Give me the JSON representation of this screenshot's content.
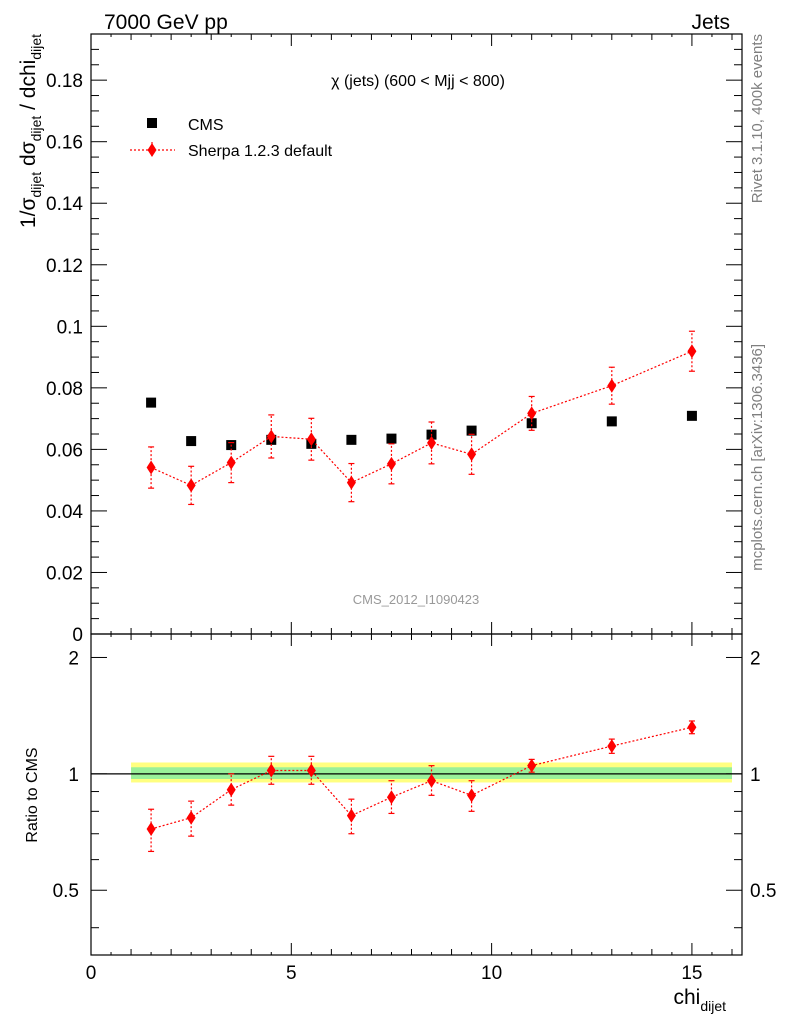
{
  "header": {
    "left": "7000 GeV pp",
    "right": "Jets"
  },
  "side_labels": {
    "rivet": "Rivet 3.1.10,  400k events",
    "source": "mcplots.cern.ch [arXiv:1306.3436]"
  },
  "chart_data": [
    {
      "type": "scatter",
      "title": "χ (jets) (600 < Mjj <  800)",
      "watermark": "CMS_2012_I1090423",
      "ylabel_parts": {
        "pre": "1/σ",
        "sub1": "dijet",
        "mid": " dσ",
        "sub2": "dijet",
        "post": " / dchi",
        "sub3": "dijet"
      },
      "xlim": [
        0,
        16.25
      ],
      "ylim": [
        0,
        0.195
      ],
      "yticks": [
        0,
        0.02,
        0.04,
        0.06,
        0.08,
        0.1,
        0.12,
        0.14,
        0.16,
        0.18
      ],
      "ytick_labels": [
        "0",
        "0.02",
        "0.04",
        "0.06",
        "0.08",
        "0.1",
        "0.12",
        "0.14",
        "0.16",
        "0.18"
      ],
      "legend_position": "top-left",
      "series": [
        {
          "name": "CMS",
          "style": "square-markers",
          "color": "#000000",
          "x": [
            1.5,
            2.5,
            3.5,
            4.5,
            5.5,
            6.5,
            7.5,
            8.5,
            9.5,
            11,
            13,
            15
          ],
          "y": [
            0.0752,
            0.0627,
            0.0614,
            0.0631,
            0.0618,
            0.0631,
            0.0635,
            0.0648,
            0.0661,
            0.0685,
            0.0691,
            0.0709
          ]
        },
        {
          "name": "Sherpa 1.2.3 default",
          "style": "diamond-dotted-line",
          "color": "#ff0000",
          "x": [
            1.5,
            2.5,
            3.5,
            4.5,
            5.5,
            6.5,
            7.5,
            8.5,
            9.5,
            11,
            13,
            15
          ],
          "y": [
            0.0541,
            0.0483,
            0.0557,
            0.0642,
            0.0633,
            0.0492,
            0.0553,
            0.0621,
            0.0584,
            0.0717,
            0.0807,
            0.0919
          ],
          "err": [
            0.0067,
            0.0062,
            0.0065,
            0.007,
            0.0068,
            0.0062,
            0.0065,
            0.0068,
            0.0065,
            0.0055,
            0.006,
            0.0065
          ]
        }
      ]
    },
    {
      "type": "scatter",
      "ylabel": "Ratio to CMS",
      "xlabel": "chi",
      "xlabel_sub": "dijet",
      "xlim": [
        0,
        16.25
      ],
      "ylim": [
        0.34,
        2.3
      ],
      "log_y": true,
      "xticks": [
        0,
        5,
        10,
        15
      ],
      "xtick_labels": [
        "0",
        "5",
        "10",
        "15"
      ],
      "yticks": [
        0.5,
        1,
        2
      ],
      "ytick_labels": [
        "0.5",
        "1",
        "2"
      ],
      "reference_band": {
        "x": [
          1,
          16
        ],
        "yellow": [
          0.95,
          1.07
        ],
        "green": [
          0.97,
          1.04
        ]
      },
      "series": [
        {
          "name": "Sherpa 1.2.3 default",
          "color": "#ff0000",
          "x": [
            1.5,
            2.5,
            3.5,
            4.5,
            5.5,
            6.5,
            7.5,
            8.5,
            9.5,
            11,
            13,
            15
          ],
          "y": [
            0.72,
            0.77,
            0.91,
            1.02,
            1.02,
            0.78,
            0.87,
            0.96,
            0.88,
            1.05,
            1.18,
            1.32
          ],
          "err_low": [
            0.09,
            0.08,
            0.08,
            0.08,
            0.08,
            0.08,
            0.08,
            0.08,
            0.08,
            0.04,
            0.05,
            0.05
          ],
          "err_high": [
            0.09,
            0.08,
            0.09,
            0.09,
            0.09,
            0.08,
            0.09,
            0.09,
            0.08,
            0.04,
            0.05,
            0.05
          ]
        }
      ]
    }
  ]
}
